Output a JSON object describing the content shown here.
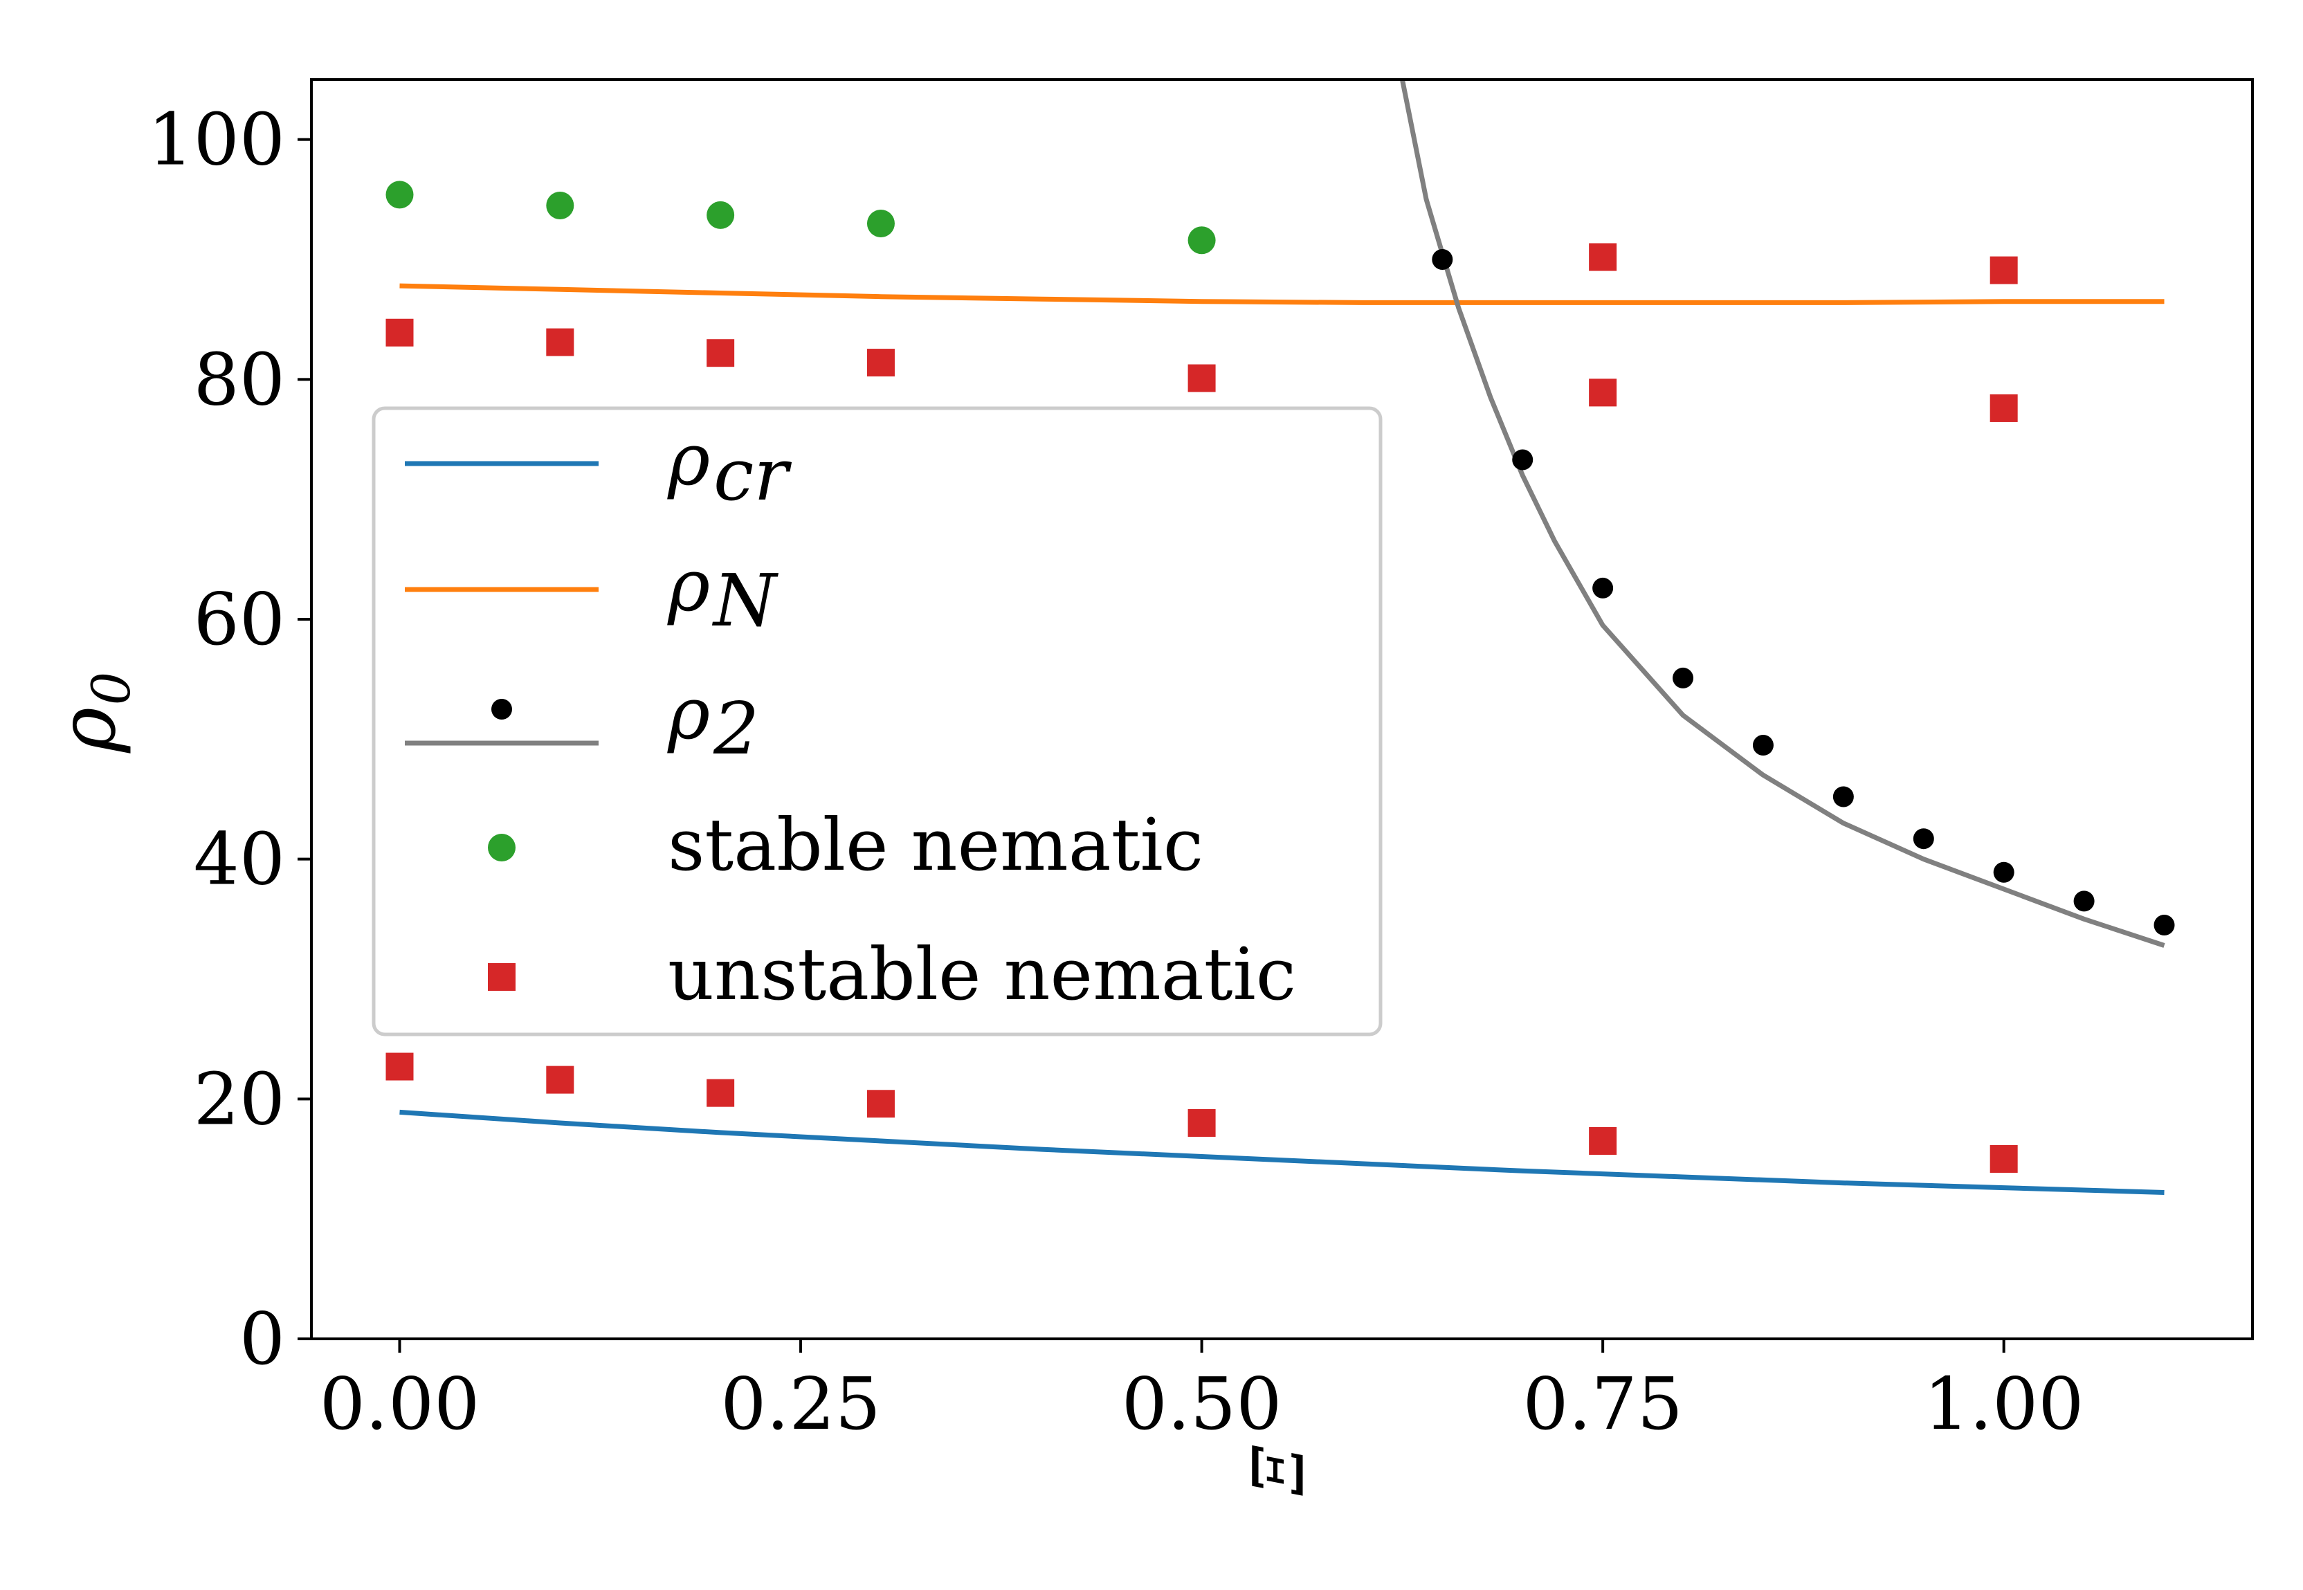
{
  "chart_data": {
    "type": "line+scatter",
    "title": "",
    "xlabel": "Ξ",
    "ylabel": "ρ",
    "ylabel_sub": "0",
    "xlim": [
      -0.055,
      1.155
    ],
    "ylim": [
      0,
      105
    ],
    "xticks": [
      0.0,
      0.25,
      0.5,
      0.75,
      1.0
    ],
    "xtick_labels": [
      "0.00",
      "0.25",
      "0.50",
      "0.75",
      "1.00"
    ],
    "yticks": [
      0,
      20,
      40,
      60,
      80,
      100
    ],
    "ytick_labels": [
      "0",
      "20",
      "40",
      "60",
      "80",
      "100"
    ],
    "grid": false,
    "legend_position": "center-left",
    "colors": {
      "rho_cr": "#1f77b4",
      "rho_N": "#ff7f0e",
      "rho_2_line": "#808080",
      "rho_2_points": "#000000",
      "stable": "#2ca02c",
      "unstable": "#d62728"
    },
    "legend": [
      {
        "id": "rho_cr",
        "base": "ρ",
        "sub": "cr",
        "marker": "line",
        "color": "#1f77b4"
      },
      {
        "id": "rho_N",
        "base": "ρ",
        "sub": "N",
        "marker": "line",
        "color": "#ff7f0e"
      },
      {
        "id": "rho_2",
        "base": "ρ",
        "sub": "2",
        "marker": "dot+line",
        "color": "#808080"
      },
      {
        "id": "stable",
        "text": "stable nematic",
        "marker": "circle",
        "color": "#2ca02c"
      },
      {
        "id": "unstable",
        "text": "unstable nematic",
        "marker": "square",
        "color": "#d62728"
      }
    ],
    "series": [
      {
        "name": "rho_cr",
        "kind": "line",
        "color": "#1f77b4",
        "x": [
          0.0,
          0.1,
          0.2,
          0.3,
          0.4,
          0.5,
          0.6,
          0.7,
          0.8,
          0.9,
          1.0,
          1.1
        ],
        "y": [
          18.9,
          18.0,
          17.2,
          16.5,
          15.8,
          15.2,
          14.6,
          14.0,
          13.5,
          13.0,
          12.6,
          12.2
        ]
      },
      {
        "name": "rho_N",
        "kind": "line",
        "color": "#ff7f0e",
        "x": [
          0.0,
          0.1,
          0.2,
          0.3,
          0.4,
          0.5,
          0.6,
          0.7,
          0.8,
          0.9,
          1.0,
          1.1
        ],
        "y": [
          87.8,
          87.5,
          87.2,
          86.9,
          86.7,
          86.5,
          86.4,
          86.4,
          86.4,
          86.4,
          86.5,
          86.5
        ]
      },
      {
        "name": "rho_2_curve",
        "kind": "line",
        "color": "#808080",
        "x": [
          0.625,
          0.64,
          0.66,
          0.68,
          0.7,
          0.72,
          0.75,
          0.8,
          0.85,
          0.9,
          0.95,
          1.0,
          1.05,
          1.1
        ],
        "y": [
          105,
          95.0,
          86.0,
          78.5,
          72.0,
          66.5,
          59.5,
          52.0,
          47.0,
          43.0,
          40.0,
          37.5,
          35.0,
          32.8
        ]
      },
      {
        "name": "rho_2_points",
        "kind": "scatter",
        "marker": "dot",
        "color": "#000000",
        "x": [
          0.65,
          0.7,
          0.75,
          0.8,
          0.85,
          0.9,
          0.95,
          1.0,
          1.05,
          1.1
        ],
        "y": [
          90.0,
          73.3,
          62.6,
          55.1,
          49.5,
          45.2,
          41.7,
          38.9,
          36.5,
          34.5
        ]
      },
      {
        "name": "stable nematic",
        "kind": "scatter",
        "marker": "circle",
        "color": "#2ca02c",
        "x": [
          0.0,
          0.1,
          0.2,
          0.3,
          0.5
        ],
        "y": [
          95.4,
          94.5,
          93.7,
          93.0,
          91.6
        ]
      },
      {
        "name": "unstable nematic",
        "kind": "scatter",
        "marker": "square",
        "color": "#d62728",
        "x": [
          0.0,
          0.1,
          0.2,
          0.3,
          0.5,
          0.75,
          0.75,
          1.0,
          1.0,
          0.0,
          0.1,
          0.2,
          0.3,
          0.5,
          0.75,
          1.0
        ],
        "y": [
          83.9,
          83.1,
          82.2,
          81.4,
          80.1,
          90.2,
          78.9,
          89.1,
          77.6,
          22.7,
          21.6,
          20.5,
          19.6,
          18.0,
          16.5,
          15.0
        ]
      }
    ]
  }
}
